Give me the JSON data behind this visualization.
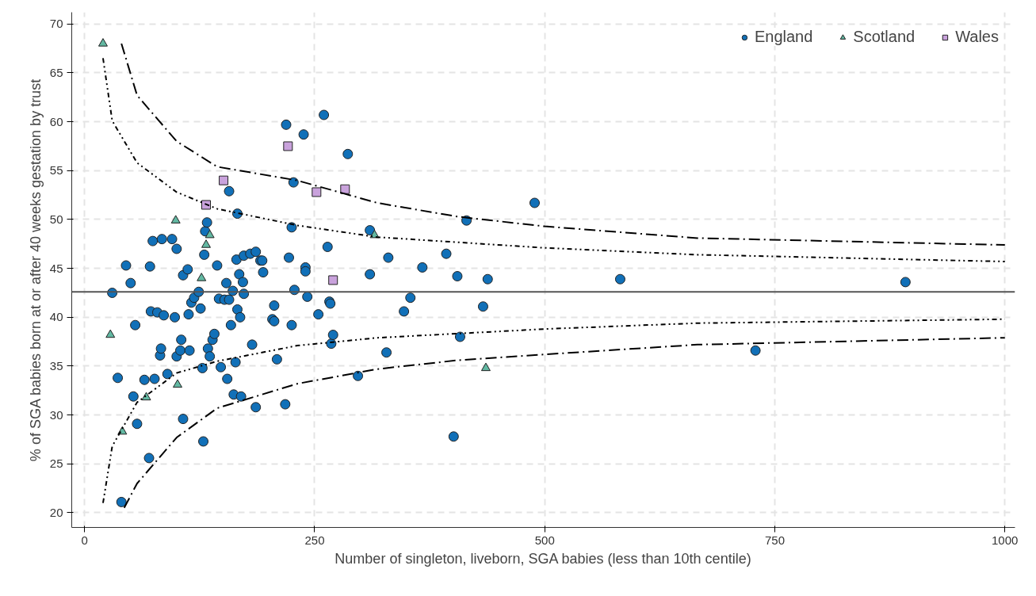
{
  "chart_data": {
    "type": "scatter",
    "xlabel": "Number of singleton, liveborn, SGA babies (less than 10th centile)",
    "ylabel": "% of SGA babies born at or after 40 weeks gestation by trust",
    "xlim": [
      -14,
      1011
    ],
    "ylim": [
      18.5,
      71.2
    ],
    "xticks": [
      0,
      250,
      500,
      750,
      1000
    ],
    "yticks": [
      20,
      25,
      30,
      35,
      40,
      45,
      50,
      55,
      60,
      65,
      70
    ],
    "grid": true,
    "legend": "top right",
    "ref_lines": [
      {
        "axis": "y",
        "value": 42.6,
        "color": "#555555",
        "line_style": "solid"
      }
    ],
    "series": [
      {
        "name": "England",
        "marker": "circle",
        "color": "#1170b8",
        "x": [
          30,
          36,
          40,
          45,
          50,
          53,
          55,
          57,
          65,
          70,
          71,
          72,
          74,
          76,
          79,
          82,
          83,
          84,
          86,
          90,
          95,
          98,
          100,
          100,
          104,
          105,
          107,
          107,
          112,
          113,
          114,
          116,
          119,
          124,
          126,
          128,
          129,
          130,
          131,
          133,
          134,
          136,
          139,
          141,
          144,
          146,
          148,
          152,
          154,
          155,
          157,
          157,
          159,
          161,
          162,
          164,
          165,
          166,
          166,
          168,
          169,
          170,
          172,
          173,
          173,
          180,
          182,
          186,
          186,
          191,
          193,
          194,
          204,
          206,
          206,
          209,
          218,
          219,
          222,
          225,
          225,
          227,
          228,
          238,
          240,
          240,
          242,
          254,
          260,
          264,
          266,
          267,
          268,
          270,
          286,
          297,
          310,
          310,
          328,
          330,
          347,
          354,
          367,
          393,
          401,
          405,
          408,
          415,
          433,
          438,
          489,
          582,
          729,
          892
        ],
        "values": [
          42.5,
          33.8,
          21.1,
          45.3,
          43.5,
          31.9,
          39.2,
          29.1,
          33.6,
          25.6,
          45.2,
          40.6,
          47.8,
          33.7,
          40.5,
          36.1,
          36.8,
          48.0,
          40.2,
          34.2,
          48.0,
          40.0,
          47.0,
          36.0,
          36.6,
          37.7,
          44.3,
          29.6,
          44.9,
          40.3,
          36.6,
          41.5,
          42.0,
          42.6,
          40.9,
          34.8,
          27.3,
          46.4,
          48.8,
          49.7,
          36.8,
          36.0,
          37.7,
          38.3,
          45.3,
          41.9,
          34.9,
          41.8,
          43.5,
          33.7,
          52.9,
          41.8,
          39.2,
          42.7,
          32.1,
          35.4,
          45.9,
          40.8,
          50.6,
          44.4,
          40.0,
          31.9,
          43.6,
          42.4,
          46.3,
          46.5,
          37.2,
          46.7,
          30.8,
          45.8,
          45.8,
          44.6,
          39.8,
          39.6,
          41.2,
          35.7,
          31.1,
          59.7,
          46.1,
          49.2,
          39.2,
          53.8,
          42.8,
          58.7,
          45.1,
          44.7,
          42.1,
          40.3,
          60.7,
          47.2,
          41.6,
          41.4,
          37.3,
          38.2,
          56.7,
          34.0,
          48.9,
          44.4,
          36.4,
          46.1,
          40.6,
          42.0,
          45.1,
          46.5,
          27.8,
          44.2,
          38.0,
          49.9,
          41.1,
          43.9,
          51.7,
          43.9,
          36.6,
          43.6
        ]
      },
      {
        "name": "Scotland",
        "marker": "triangle",
        "color": "#62b8a2",
        "x": [
          20,
          28,
          41,
          67,
          99,
          101,
          127,
          132,
          136,
          315,
          436
        ],
        "values": [
          68.0,
          38.2,
          28.3,
          31.8,
          49.9,
          33.1,
          44.0,
          47.4,
          48.4,
          48.4,
          34.8
        ]
      },
      {
        "name": "Wales",
        "marker": "square",
        "color": "#c9a2dc",
        "x": [
          132,
          151,
          221,
          252,
          283,
          270
        ],
        "values": [
          51.5,
          54.0,
          57.5,
          52.8,
          53.1,
          43.8
        ]
      },
      {
        "type": "line",
        "line_style": "dashed",
        "color": "#000000",
        "x": [
          40,
          57,
          100,
          144,
          231,
          318,
          405,
          500,
          666,
          1000
        ],
        "values": [
          68.0,
          62.7,
          58.0,
          55.4,
          54.0,
          51.7,
          50.3,
          49.3,
          48.1,
          47.4
        ]
      },
      {
        "type": "line",
        "line_style": "dashed",
        "color": "#000000",
        "x": [
          43,
          57,
          100,
          144,
          231,
          318,
          405,
          500,
          666,
          1000
        ],
        "values": [
          20.5,
          23.0,
          27.7,
          30.7,
          33.2,
          34.7,
          35.6,
          36.2,
          37.2,
          37.9
        ]
      },
      {
        "type": "line",
        "line_style": "dotted",
        "color": "#000000",
        "x": [
          20,
          30,
          57,
          100,
          144,
          231,
          318,
          500,
          666,
          1000
        ],
        "values": [
          66.5,
          60.1,
          55.8,
          52.8,
          51.1,
          49.4,
          48.2,
          47.1,
          46.4,
          45.7
        ]
      },
      {
        "type": "line",
        "line_style": "dotted",
        "color": "#000000",
        "x": [
          20,
          30,
          57,
          100,
          144,
          231,
          318,
          500,
          666,
          1000
        ],
        "values": [
          21.0,
          26.8,
          31.3,
          34.3,
          35.5,
          37.1,
          37.9,
          38.8,
          39.4,
          39.8
        ]
      }
    ]
  }
}
